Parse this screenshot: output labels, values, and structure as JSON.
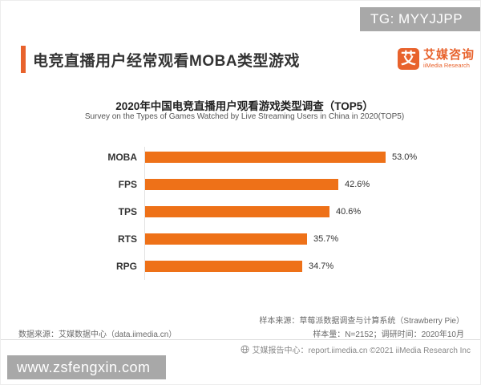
{
  "watermarks": {
    "telegram_badge": "TG: MYYJJPP",
    "site_badge": "www.zsfengxin.com"
  },
  "header": {
    "title": "电竞直播用户经常观看MOBA类型游戏",
    "logo": {
      "mark": "艾",
      "name_cn": "艾媒咨询",
      "name_en": "iiMedia Research"
    }
  },
  "chart_data": {
    "type": "bar",
    "orientation": "horizontal",
    "title": "2020年中国电竞直播用户观看游戏类型调查（TOP5）",
    "subtitle": "Survey on the Types of Games Watched by Live Streaming Users in China in 2020(TOP5)",
    "categories": [
      "MOBA",
      "FPS",
      "TPS",
      "RTS",
      "RPG"
    ],
    "values": [
      53.0,
      42.6,
      40.6,
      35.7,
      34.7
    ],
    "value_labels": [
      "53.0%",
      "42.6%",
      "40.6%",
      "35.7%",
      "34.7%"
    ],
    "unit": "%",
    "xlim": [
      0,
      56
    ],
    "grid": false,
    "legend": false,
    "bar_color": "#ee7118"
  },
  "notes": {
    "sample_source": "样本来源：草莓派数据调查与计算系统（Strawberry Pie）",
    "sample_size": "样本量：N=2152；调研时间：2020年10月",
    "data_source": "数据来源：艾媒数据中心（data.iimedia.cn）"
  },
  "footer": {
    "report_center": "艾媒报告中心：report.iimedia.cn ©2021  iiMedia Research Inc"
  },
  "colors": {
    "accent_orange": "#e8622c",
    "bar_orange": "#ee7118",
    "badge_gray": "#a8a8a8"
  }
}
